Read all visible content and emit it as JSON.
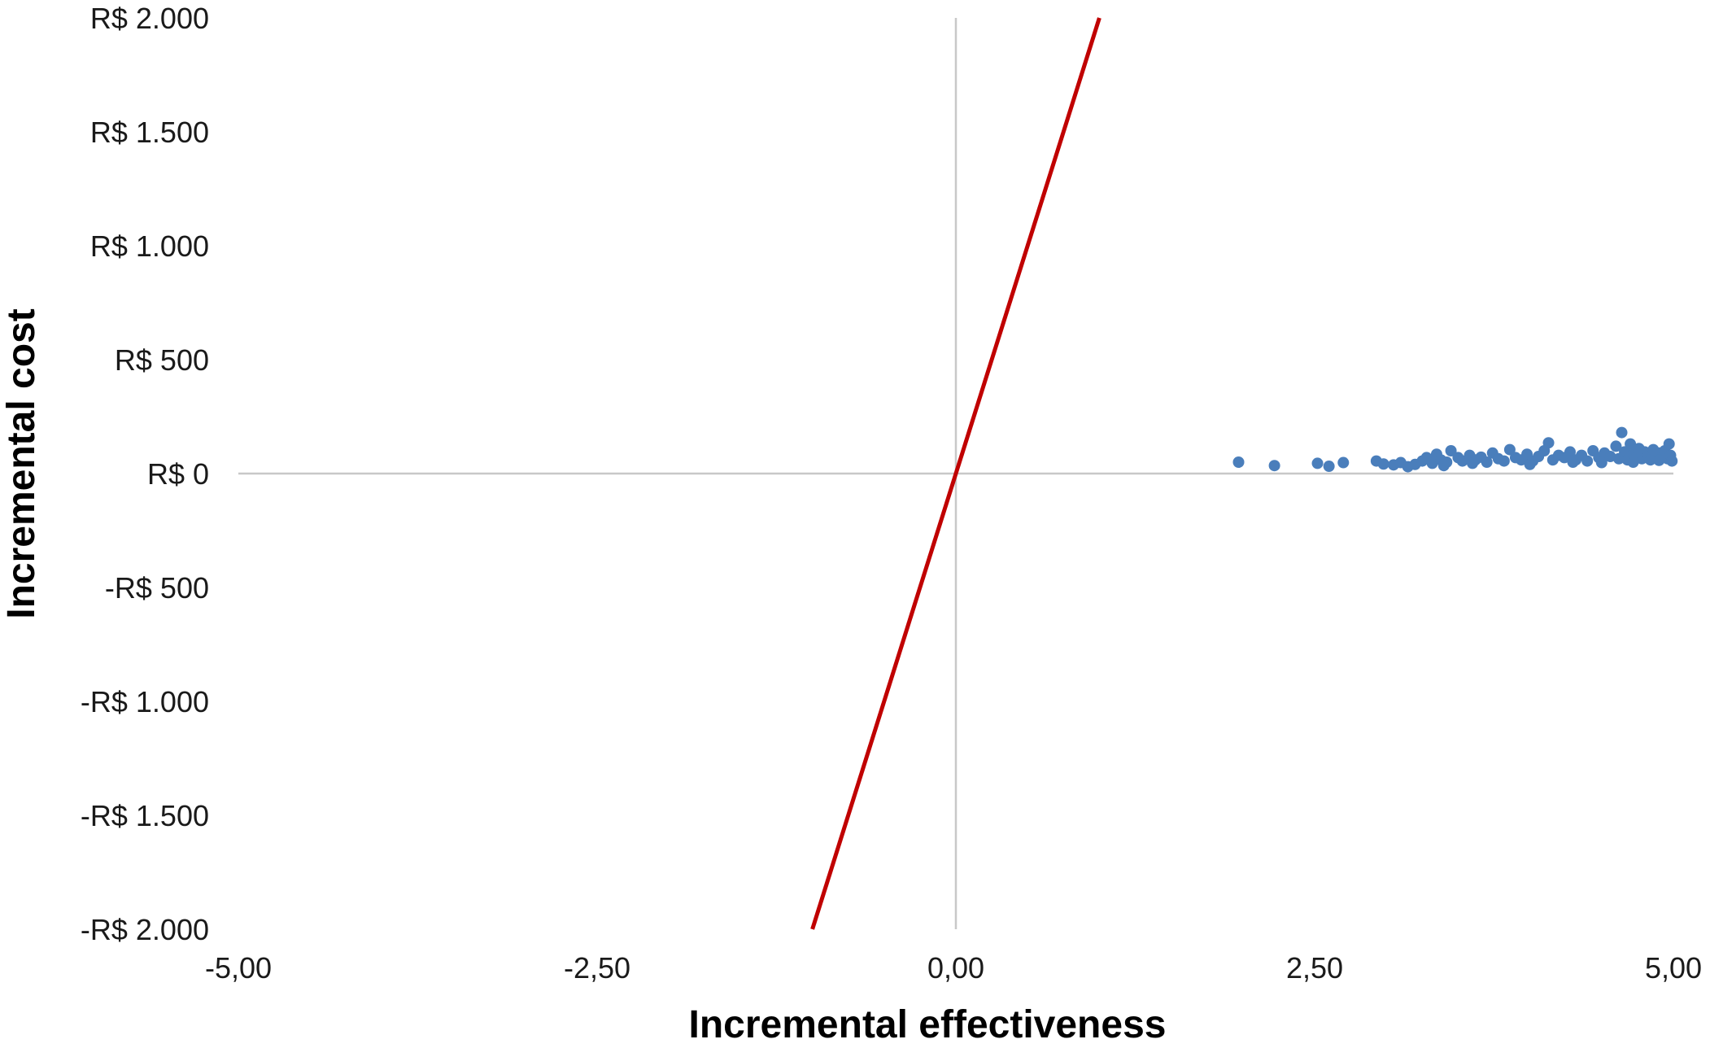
{
  "chart_data": {
    "type": "scatter",
    "title": "",
    "xlabel": "Incremental effectiveness",
    "ylabel": "Incremental cost",
    "xlim": [
      -5,
      5
    ],
    "ylim": [
      -2000,
      2000
    ],
    "x_ticks": [
      -5,
      -2.5,
      0,
      2.5,
      5
    ],
    "x_tick_labels": [
      "-5,00",
      "-2,50",
      "0,00",
      "2,50",
      "5,00"
    ],
    "y_ticks": [
      2000,
      1500,
      1000,
      500,
      0,
      -500,
      -1000,
      -1500,
      -2000
    ],
    "y_tick_labels": [
      "R$ 2.000",
      "R$ 1.500",
      "R$ 1.000",
      "R$ 500",
      "R$ 0",
      "-R$ 500",
      "-R$ 1.000",
      "-R$ 1.500",
      "-R$ 2.000"
    ],
    "grid": false,
    "legend": "none",
    "threshold_line": {
      "points": [
        [
          -1,
          -2000
        ],
        [
          1,
          2000
        ]
      ],
      "color": "#c00000"
    },
    "series": [
      {
        "color": "#4a7ebb",
        "points": [
          [
            1.97,
            50
          ],
          [
            2.22,
            35
          ],
          [
            2.52,
            45
          ],
          [
            2.6,
            32
          ],
          [
            2.7,
            48
          ],
          [
            2.93,
            55
          ],
          [
            2.98,
            42
          ],
          [
            3.05,
            38
          ],
          [
            3.1,
            48
          ],
          [
            3.15,
            30
          ],
          [
            3.2,
            40
          ],
          [
            3.25,
            55
          ],
          [
            3.28,
            70
          ],
          [
            3.32,
            45
          ],
          [
            3.35,
            85
          ],
          [
            3.38,
            60
          ],
          [
            3.42,
            50
          ],
          [
            3.45,
            100
          ],
          [
            3.5,
            70
          ],
          [
            3.53,
            55
          ],
          [
            3.58,
            80
          ],
          [
            3.62,
            60
          ],
          [
            3.66,
            72
          ],
          [
            3.7,
            50
          ],
          [
            3.74,
            90
          ],
          [
            3.78,
            65
          ],
          [
            3.82,
            55
          ],
          [
            3.86,
            105
          ],
          [
            3.9,
            70
          ],
          [
            3.94,
            60
          ],
          [
            3.98,
            85
          ],
          [
            4.02,
            55
          ],
          [
            4.06,
            75
          ],
          [
            4.1,
            100
          ],
          [
            4.13,
            135
          ],
          [
            4.16,
            60
          ],
          [
            4.2,
            80
          ],
          [
            4.24,
            70
          ],
          [
            4.28,
            95
          ],
          [
            4.32,
            60
          ],
          [
            4.36,
            80
          ],
          [
            4.4,
            55
          ],
          [
            4.44,
            100
          ],
          [
            4.48,
            70
          ],
          [
            4.52,
            90
          ],
          [
            4.56,
            75
          ],
          [
            4.6,
            120
          ],
          [
            4.62,
            65
          ],
          [
            4.64,
            180
          ],
          [
            4.66,
            95
          ],
          [
            4.68,
            60
          ],
          [
            4.7,
            130
          ],
          [
            4.72,
            85
          ],
          [
            4.74,
            70
          ],
          [
            4.76,
            110
          ],
          [
            4.78,
            65
          ],
          [
            4.8,
            95
          ],
          [
            4.82,
            80
          ],
          [
            4.84,
            60
          ],
          [
            4.86,
            105
          ],
          [
            4.88,
            75
          ],
          [
            4.9,
            90
          ],
          [
            4.92,
            70
          ],
          [
            4.94,
            100
          ],
          [
            4.96,
            65
          ],
          [
            4.97,
            130
          ],
          [
            4.98,
            80
          ],
          [
            4.99,
            55
          ],
          [
            3.6,
            45
          ],
          [
            4.0,
            40
          ],
          [
            4.3,
            50
          ],
          [
            4.5,
            48
          ],
          [
            4.72,
            50
          ],
          [
            4.9,
            58
          ],
          [
            3.4,
            35
          ]
        ]
      }
    ]
  }
}
